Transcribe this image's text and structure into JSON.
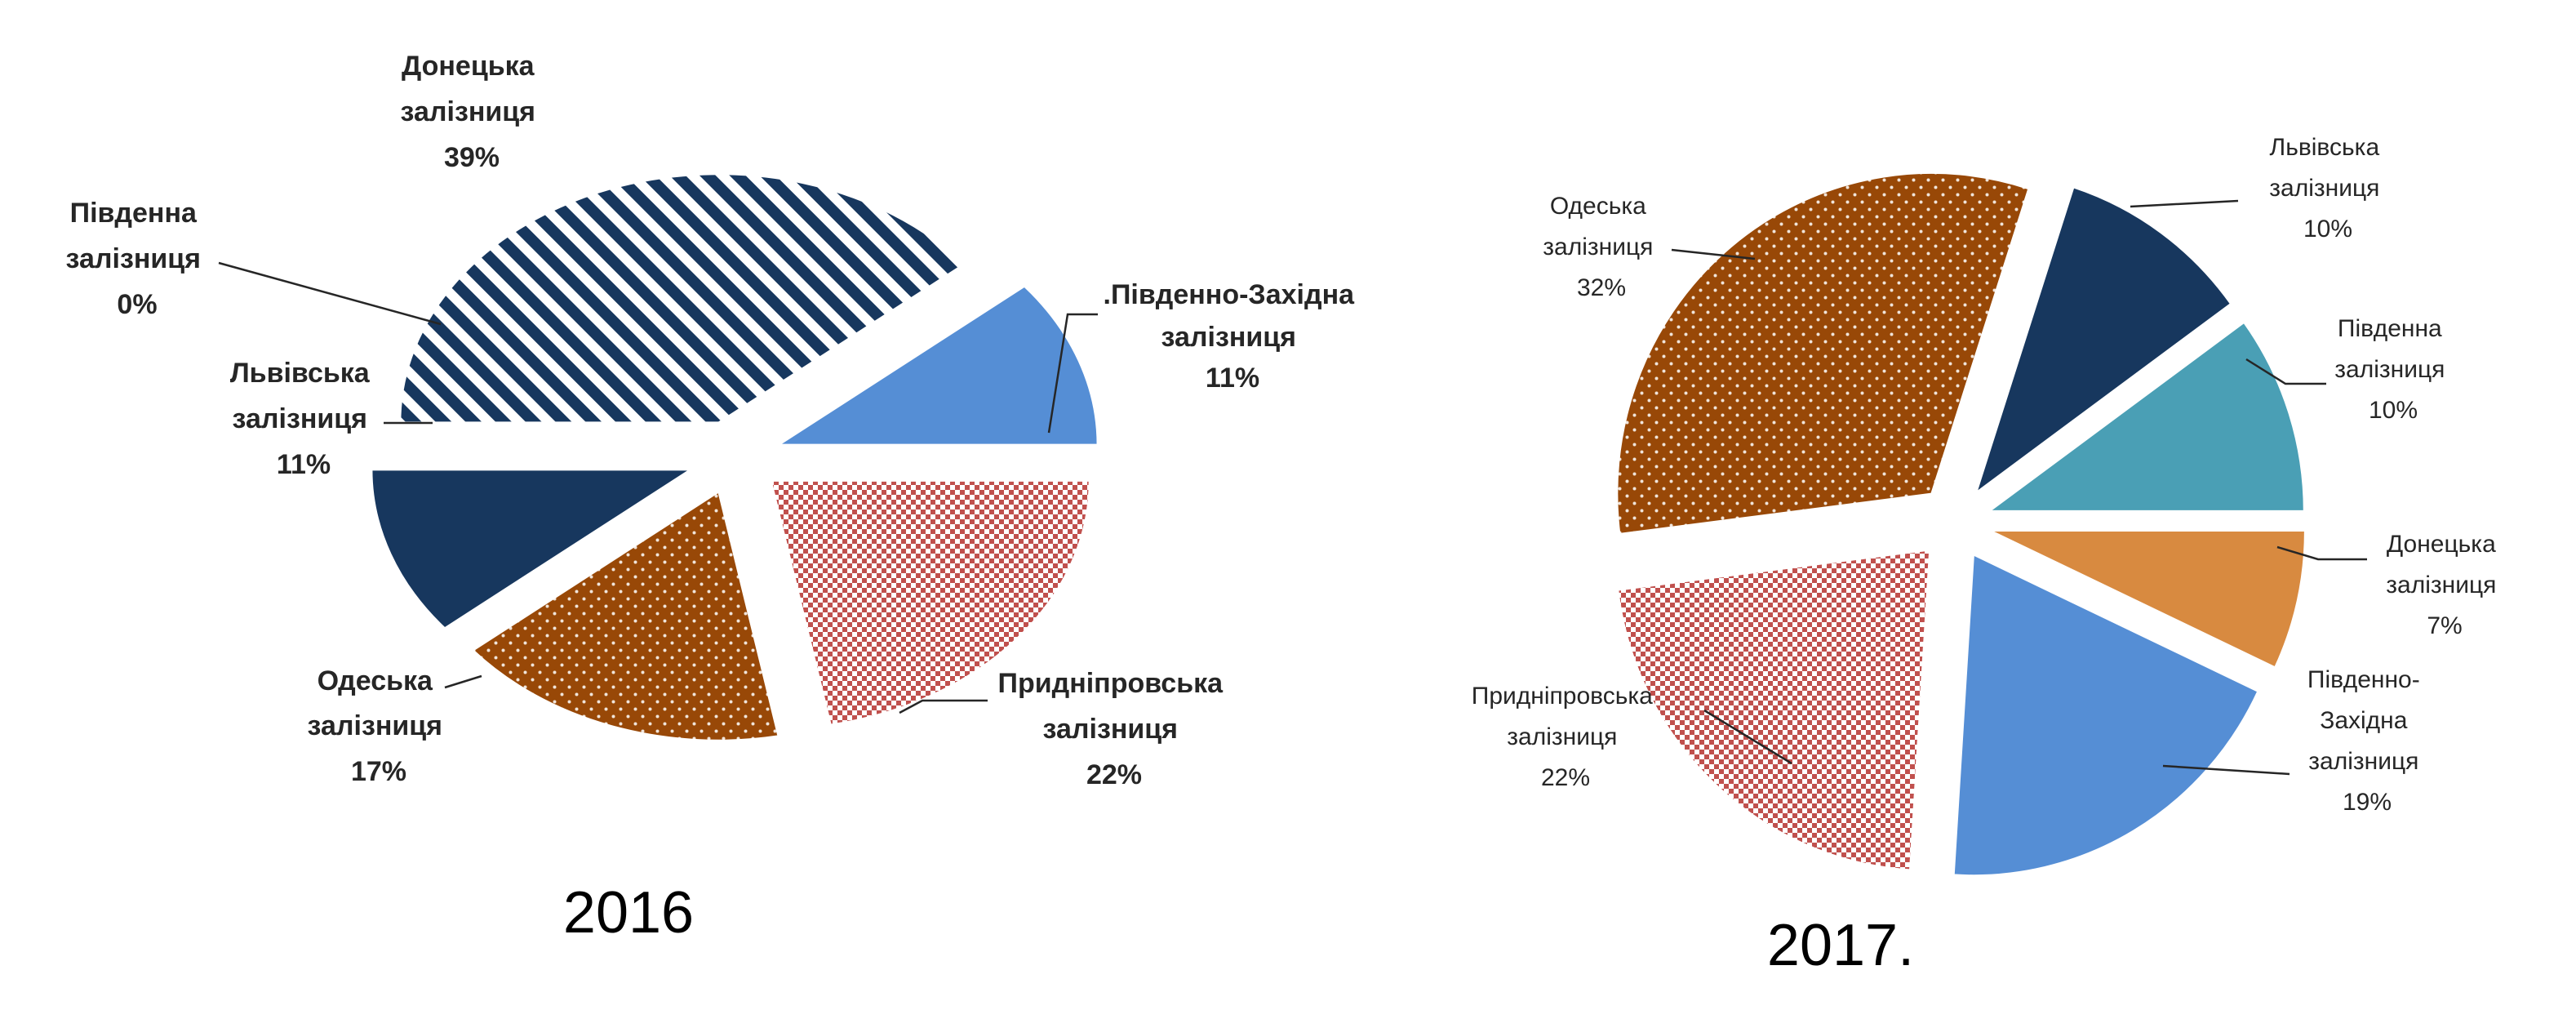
{
  "chart_data": [
    {
      "type": "pie",
      "title": "2016",
      "slices": [
        {
          "name": "Донецька залізниця",
          "value": 39,
          "label": "39%",
          "color": "#17375e",
          "pattern": "stripes"
        },
        {
          "name": "Південно-Західна залізниця",
          "value": 11,
          "label": "11%",
          "color": "#558ed5",
          "pattern": "solid"
        },
        {
          "name": "Придніпровська залізниця",
          "value": 22,
          "label": "22%",
          "color": "#c0504d",
          "pattern": "checker"
        },
        {
          "name": "Одеська залізниця",
          "value": 17,
          "label": "17%",
          "color": "#984807",
          "pattern": "dots"
        },
        {
          "name": "Львівська залізниця",
          "value": 11,
          "label": "11%",
          "color": "#17375e",
          "pattern": "solid"
        },
        {
          "name": "Південна залізниця",
          "value": 0,
          "label": "0%",
          "color": "#4bacc6",
          "pattern": "solid"
        }
      ]
    },
    {
      "type": "pie",
      "title": "2017",
      "slices": [
        {
          "name": "Львівська залізниця",
          "value": 10,
          "label": "10%",
          "color": "#17375e",
          "pattern": "solid"
        },
        {
          "name": "Південна залізниця",
          "value": 10,
          "label": "10%",
          "color": "#4a9fb5",
          "pattern": "solid"
        },
        {
          "name": "Донецька залізниця",
          "value": 7,
          "label": "7%",
          "color": "#d88a40",
          "pattern": "solid"
        },
        {
          "name": "Південно-Західна залізниця",
          "value": 19,
          "label": "19%",
          "color": "#558ed5",
          "pattern": "solid"
        },
        {
          "name": "Придніпровська залізниця",
          "value": 22,
          "label": "22%",
          "color": "#c0504d",
          "pattern": "checker"
        },
        {
          "name": "Одеська залізниця",
          "value": 32,
          "label": "32%",
          "color": "#984807",
          "pattern": "dots"
        }
      ]
    }
  ],
  "labels": {
    "chart2016": {
      "donetska": {
        "line1": "Донецька",
        "line2": "залізниця"
      },
      "pivdzakh": {
        "line1": ".Південно-Західна",
        "line2": "залізниця"
      },
      "prydnipr": {
        "line1": "Придніпровська",
        "line2": "залізниця"
      },
      "odeska": {
        "line1": "Одеська",
        "line2": "залізниця"
      },
      "lvivska": {
        "line1": "Львівська",
        "line2": "залізниця"
      },
      "pivdenna": {
        "line1": "Південна",
        "line2": "залізниця"
      }
    },
    "chart2017": {
      "lvivska": {
        "line1": "Львівська",
        "line2": "залізниця"
      },
      "pivdenna": {
        "line1": "Південна",
        "line2": "залізниця"
      },
      "donetska": {
        "line1": "Донецька",
        "line2": "залізниця"
      },
      "pivdzakh": {
        "line1": "Південно-",
        "line2": "Західна",
        "line3": "залізниця"
      },
      "prydnipr": {
        "line1": "Придніпровська",
        "line2": "залізниця"
      },
      "odeska": {
        "line1": "Одеська",
        "line2": "залізниця"
      }
    }
  },
  "captions": {
    "year2016": "2016",
    "year2017": "2017."
  }
}
